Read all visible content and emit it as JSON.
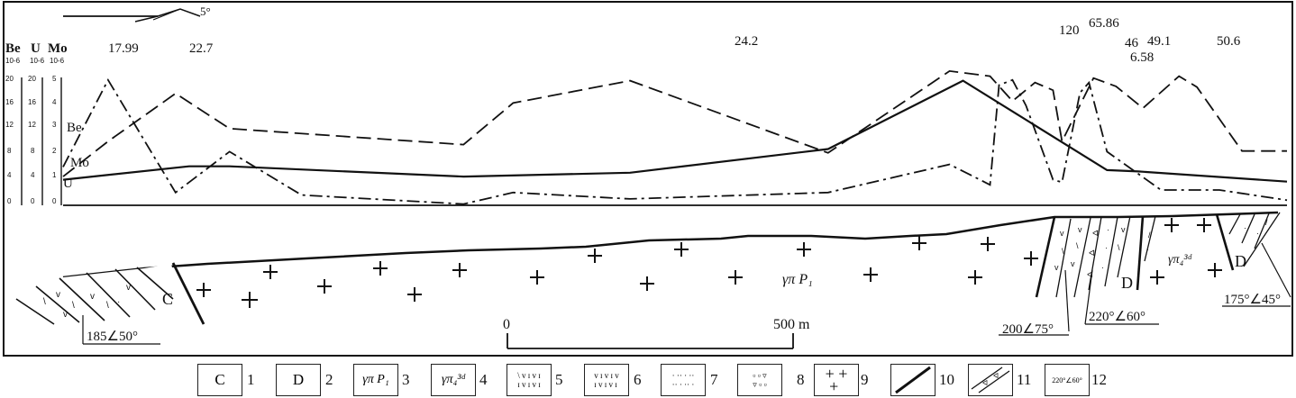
{
  "orientation": {
    "azimuth": "5°"
  },
  "axis_headers": {
    "be": "Be",
    "u": "U",
    "mo": "Mo",
    "unit": "10-6"
  },
  "scales": {
    "be": [
      "20",
      "16",
      "12",
      "8",
      "4",
      "0"
    ],
    "u": [
      "20",
      "16",
      "12",
      "8",
      "4",
      "0"
    ],
    "mo": [
      "5",
      "4",
      "3",
      "2",
      "1",
      "0"
    ]
  },
  "curve_labels": {
    "be": "Be",
    "mo": "Mo",
    "u": "U"
  },
  "peak_labels": [
    "17.99",
    "22.7",
    "24.2",
    "120",
    "65.86",
    "46",
    "6.58",
    "49.1",
    "50.6"
  ],
  "section_labels": {
    "c": "C",
    "d1": "D",
    "d2": "D",
    "granite": "γπ P₁",
    "granite2": "γπ₄³ᵈ"
  },
  "attitudes": [
    "185∠50°",
    "200∠75°",
    "220°∠60°",
    "175°∠45°"
  ],
  "scale_bar": {
    "start": "0",
    "end": "500 m"
  },
  "legend": [
    {
      "num": "1",
      "label": "C",
      "icon": "carboniferous-symbol"
    },
    {
      "num": "2",
      "label": "D",
      "icon": "devonian-symbol"
    },
    {
      "num": "3",
      "label": "γπ P₁",
      "icon": "granite-porphyry-symbol"
    },
    {
      "num": "4",
      "label": "γπ₄³ᵈ",
      "icon": "granite-porphyry-4-symbol"
    },
    {
      "num": "5",
      "icon": "volcanic-rock-pattern"
    },
    {
      "num": "6",
      "icon": "tuff-pattern"
    },
    {
      "num": "7",
      "icon": "sandstone-pattern"
    },
    {
      "num": "8",
      "icon": "breccia-pattern"
    },
    {
      "num": "9",
      "icon": "granite-cross-pattern"
    },
    {
      "num": "10",
      "icon": "fault-line"
    },
    {
      "num": "11",
      "icon": "dike-pattern"
    },
    {
      "num": "12",
      "label": "220°∠60°",
      "icon": "attitude-symbol"
    }
  ],
  "chart_data": {
    "type": "line",
    "title": "",
    "x_unit": "m",
    "x_range": [
      0,
      1360
    ],
    "series": [
      {
        "name": "Be",
        "unit": "10-6",
        "x": [
          0,
          50,
          125,
          185,
          445,
          500,
          630,
          850,
          985,
          1030,
          1055,
          1080,
          1100,
          1110,
          1145,
          1170,
          1200,
          1240,
          1260,
          1310,
          1360
        ],
        "values": [
          4.5,
          10,
          17.5,
          12,
          9.5,
          16,
          19.5,
          8.2,
          21,
          20.2,
          16.3,
          19.2,
          18,
          10,
          19.9,
          18.6,
          15.2,
          20.2,
          18.5,
          8.5,
          8.5
        ]
      },
      {
        "name": "Mo",
        "unit": "10-6",
        "x": [
          0,
          50,
          125,
          185,
          265,
          445,
          500,
          630,
          850,
          985,
          1030,
          1040,
          1055,
          1070,
          1100,
          1110,
          1130,
          1140,
          1160,
          1220,
          1260,
          1285,
          1360
        ],
        "values": [
          1.5,
          4.9,
          0.5,
          2.1,
          0.4,
          0.05,
          0.5,
          0.25,
          0.5,
          1.6,
          0.8,
          4.7,
          4.9,
          3.9,
          1,
          0.9,
          4.4,
          4.8,
          2.1,
          0.6,
          0.6,
          0.6,
          0.2
        ]
      },
      {
        "name": "U",
        "unit": "10-6",
        "x": [
          0,
          140,
          185,
          445,
          630,
          850,
          1000,
          1160,
          1195,
          1360
        ],
        "values": [
          4,
          6.1,
          6.1,
          4.5,
          5.1,
          8.8,
          19.5,
          5.5,
          5.3,
          3.7
        ]
      }
    ]
  }
}
